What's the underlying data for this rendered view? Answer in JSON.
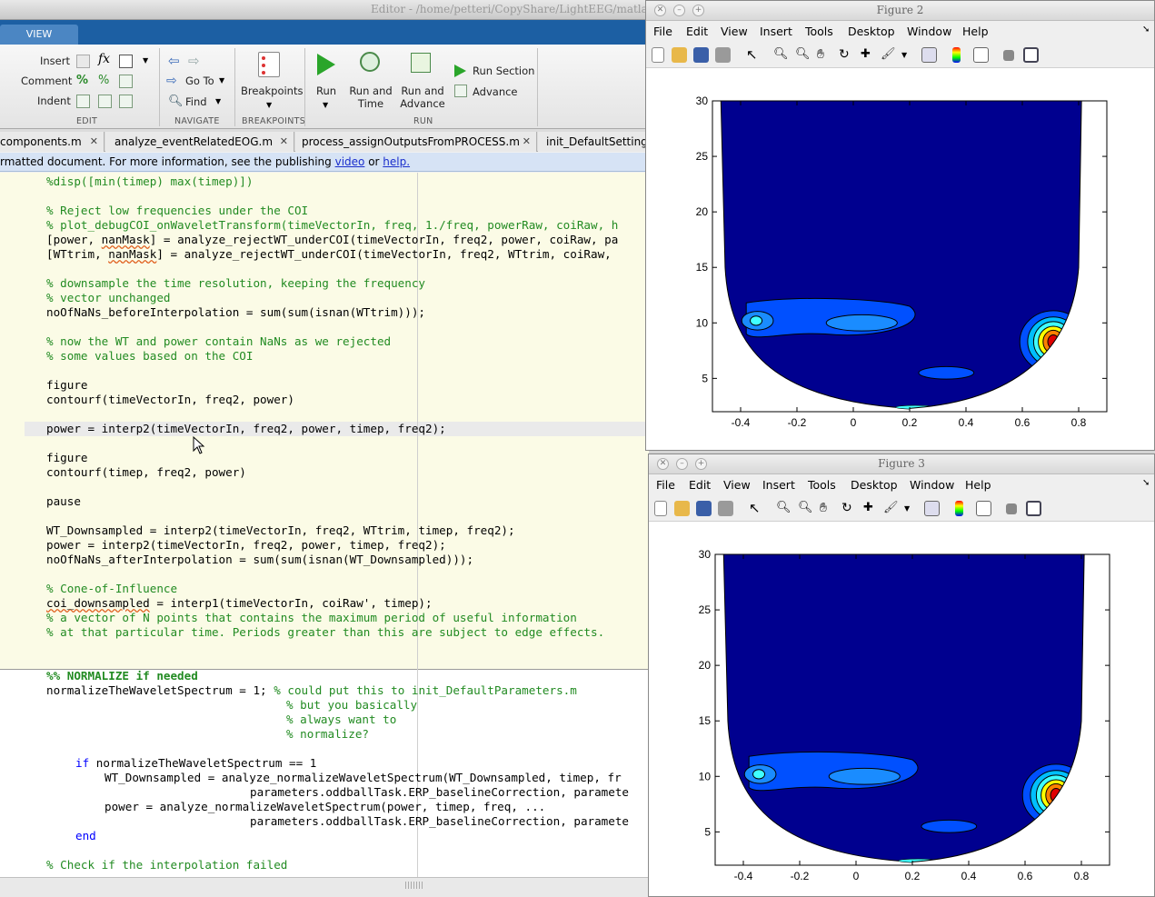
{
  "editor": {
    "title": "Editor - /home/petteri/CopyShare/LightEEG/matlab_threeS",
    "ribbon_tab": "VIEW",
    "edit": {
      "insert": "Insert",
      "comment": "Comment",
      "indent": "Indent",
      "section": "EDIT"
    },
    "navigate": {
      "goto": "Go To",
      "find": "Find",
      "section": "NAVIGATE"
    },
    "breakpoints": {
      "label": "Breakpoints",
      "section": "BREAKPOINTS"
    },
    "run": {
      "run": "Run",
      "run_and_time_1": "Run and",
      "run_and_time_2": "Time",
      "run_and_advance_1": "Run and",
      "run_and_advance_2": "Advance",
      "run_section": "Run Section",
      "advance": "Advance",
      "section": "RUN"
    },
    "doc_tabs": [
      "components.m",
      "analyze_eventRelatedEOG.m",
      "process_assignOutputsFromPROCESS.m",
      "init_DefaultSettings"
    ],
    "info": {
      "text_before": "rmatted document. For more information, see the publishing ",
      "link_video": "video",
      "text_or": " or ",
      "link_help": "help."
    },
    "code": {
      "l0": "%disp([min(timep) max(timep)])",
      "l2": "% Reject low frequencies under the COI",
      "l3": "% plot_debugCOI_onWaveletTransform(timeVectorIn, freq, 1./freq, powerRaw, coiRaw, h",
      "l4a": "[power, ",
      "l4b": "nanMask",
      "l4c": "] = analyze_rejectWT_underCOI(timeVectorIn, freq2, power, coiRaw, pa",
      "l5a": "[WTtrim, ",
      "l5b": "nanMask",
      "l5c": "] = analyze_rejectWT_underCOI(timeVectorIn, freq2, WTtrim, coiRaw, ",
      "l7": "% downsample the time resolution, keeping the frequency",
      "l8": "% vector unchanged",
      "l9": "noOfNaNs_beforeInterpolation = sum(sum(isnan(WTtrim)));",
      "l11": "% now the WT and power contain NaNs as we rejected",
      "l12": "% some values based on the COI",
      "l14": "figure",
      "l15": "contourf(timeVectorIn, freq2, power)",
      "l17": "power = interp2(timeVectorIn, freq2, power, timep, freq2);",
      "l19": "figure",
      "l20": "contourf(timep, freq2, power)",
      "l22": "pause",
      "l24": "WT_Downsampled = interp2(timeVectorIn, freq2, WTtrim, timep, freq2);",
      "l25": "power = interp2(timeVectorIn, freq2, power, timep, freq2);",
      "l26": "noOfNaNs_afterInterpolation = sum(sum(isnan(WT_Downsampled)));",
      "l28": "% Cone-of-Influence",
      "l29a": "coi_downsampled",
      "l29b": " = interp1(timeVectorIn, coiRaw', timep);",
      "l30": "% a vector of N points that contains the maximum period of useful information",
      "l31": "% at that particular time. Periods greater than this are subject to edge effects.",
      "l34": "%% NORMALIZE if needed",
      "l35a": "normalizeTheWaveletSpectrum = 1; ",
      "l35b": "% could put this to init_DefaultParameters.m",
      "l36": "% but you basically",
      "l37": "% always want to",
      "l38": "% normalize?",
      "l40a": "if",
      "l40b": " normalizeTheWaveletSpectrum == 1",
      "l41": "WT_Downsampled = analyze_normalizeWaveletSpectrum(WT_Downsampled, timep, fr",
      "l42": "parameters.oddballTask.ERP_baselineCorrection, paramete",
      "l43": "power = analyze_normalizeWaveletSpectrum(power, timep, freq, ...",
      "l44": "parameters.oddballTask.ERP_baselineCorrection, paramete",
      "l45": "end",
      "l47": "% Check if the interpolation failed"
    }
  },
  "figures": [
    {
      "title": "Figure 2"
    },
    {
      "title": "Figure 3"
    }
  ],
  "figure_menu": [
    "File",
    "Edit",
    "View",
    "Insert",
    "Tools",
    "Desktop",
    "Window",
    "Help"
  ],
  "chart_data": [
    {
      "type": "contour",
      "x_ticks": [
        "-0.4",
        "-0.2",
        "0",
        "0.2",
        "0.4",
        "0.6",
        "0.8"
      ],
      "y_ticks": [
        "5",
        "10",
        "15",
        "20",
        "25",
        "30"
      ],
      "xlim": [
        -0.5,
        0.9
      ],
      "ylim": [
        2,
        30
      ]
    },
    {
      "type": "contour",
      "x_ticks": [
        "-0.4",
        "-0.2",
        "0",
        "0.2",
        "0.4",
        "0.6",
        "0.8"
      ],
      "y_ticks": [
        "5",
        "10",
        "15",
        "20",
        "25",
        "30"
      ],
      "xlim": [
        -0.5,
        0.9
      ],
      "ylim": [
        2,
        30
      ]
    }
  ],
  "colors": {
    "ribbon_blue": "#1c5fa3",
    "contour_dark": "#00008f",
    "contour_mid": "#0050ff",
    "contour_light": "#00bfff",
    "contour_cyan": "#40ffff",
    "contour_yellow": "#ffff00",
    "contour_orange": "#ff8000",
    "contour_red": "#e00000"
  }
}
